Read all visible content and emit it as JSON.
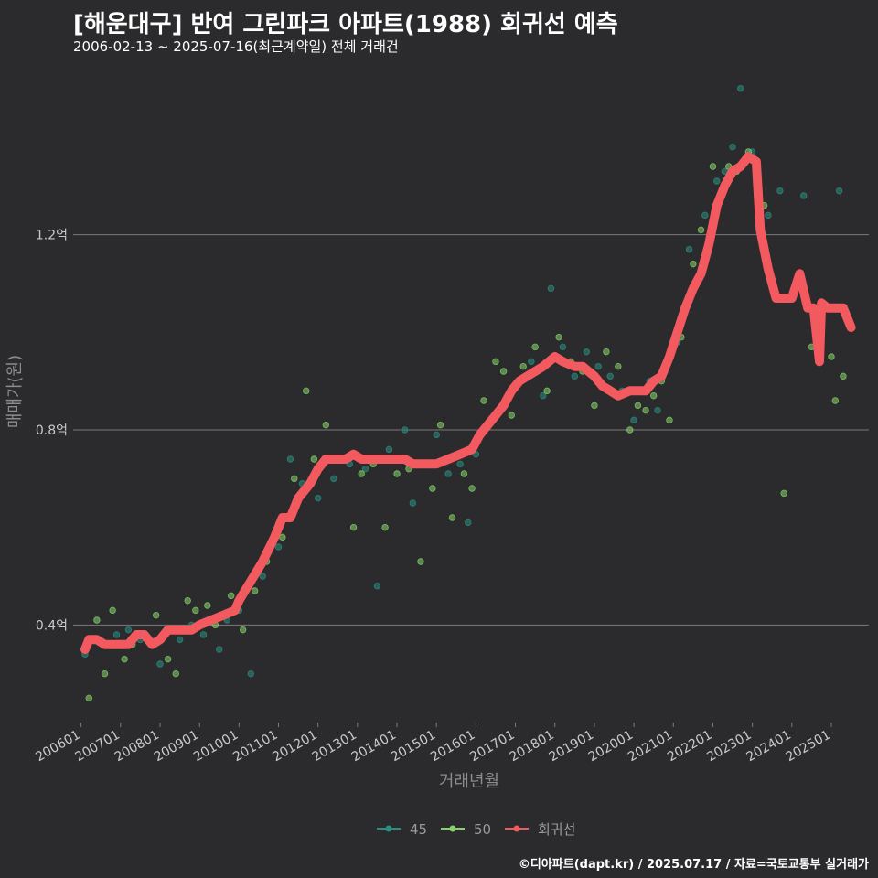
{
  "header": {
    "title": "[해운대구] 반여 그린파크 아파트(1988) 회귀선 예측",
    "subtitle": "2006-02-13 ~ 2025-07-16(최근계약일) 전체 거래건"
  },
  "credit": "©디아파트(dapt.kr) / 2025.07.17 / 자료=국토교통부 실거래가",
  "colors": {
    "background": "#2b2a2c",
    "grid": "#7a797b",
    "series_45": "#2a8f83",
    "series_50": "#86d36b",
    "regression": "#f25a5f",
    "axis_text": "#c9c9c9",
    "axis_title": "#8c8c8c"
  },
  "chart_data": {
    "type": "scatter",
    "title": "[해운대구] 반여 그린파크 아파트(1988) 회귀선 예측",
    "xlabel": "거래년월",
    "ylabel": "매매가(원)",
    "x_ticks": [
      "200601",
      "200701",
      "200801",
      "200901",
      "201001",
      "201101",
      "201201",
      "201301",
      "201401",
      "201501",
      "201601",
      "201701",
      "201801",
      "201901",
      "202001",
      "202101",
      "202201",
      "202301",
      "202401",
      "202501"
    ],
    "xlim": [
      2005.8,
      2025.95
    ],
    "ylim": [
      0.2,
      1.55
    ],
    "y_ticks": [
      0.4,
      0.8,
      1.2
    ],
    "y_tick_labels": [
      "0.4억",
      "0.8억",
      "1.2억"
    ],
    "legend": [
      {
        "key": "45",
        "label": "45"
      },
      {
        "key": "50",
        "label": "50"
      },
      {
        "key": "reg",
        "label": "회귀선"
      }
    ],
    "series": [
      {
        "name": "45",
        "points": [
          [
            2006.1,
            0.34
          ],
          [
            2006.3,
            0.37
          ],
          [
            2006.9,
            0.38
          ],
          [
            2007.2,
            0.39
          ],
          [
            2007.5,
            0.37
          ],
          [
            2008.0,
            0.32
          ],
          [
            2008.3,
            0.39
          ],
          [
            2008.5,
            0.37
          ],
          [
            2008.8,
            0.4
          ],
          [
            2009.1,
            0.38
          ],
          [
            2009.5,
            0.35
          ],
          [
            2009.7,
            0.41
          ],
          [
            2010.0,
            0.43
          ],
          [
            2010.3,
            0.3
          ],
          [
            2010.6,
            0.5
          ],
          [
            2011.0,
            0.56
          ],
          [
            2011.3,
            0.74
          ],
          [
            2011.6,
            0.69
          ],
          [
            2012.0,
            0.66
          ],
          [
            2012.4,
            0.7
          ],
          [
            2012.8,
            0.73
          ],
          [
            2013.2,
            0.72
          ],
          [
            2013.5,
            0.48
          ],
          [
            2013.8,
            0.76
          ],
          [
            2014.2,
            0.8
          ],
          [
            2014.4,
            0.65
          ],
          [
            2014.8,
            0.73
          ],
          [
            2015.0,
            0.79
          ],
          [
            2015.3,
            0.71
          ],
          [
            2015.6,
            0.73
          ],
          [
            2015.8,
            0.61
          ],
          [
            2016.0,
            0.75
          ],
          [
            2016.3,
            0.81
          ],
          [
            2016.6,
            0.84
          ],
          [
            2016.8,
            0.86
          ],
          [
            2017.1,
            0.9
          ],
          [
            2017.4,
            0.94
          ],
          [
            2017.7,
            0.87
          ],
          [
            2017.9,
            1.09
          ],
          [
            2018.2,
            0.97
          ],
          [
            2018.5,
            0.91
          ],
          [
            2018.8,
            0.96
          ],
          [
            2019.1,
            0.93
          ],
          [
            2019.4,
            0.91
          ],
          [
            2019.7,
            0.88
          ],
          [
            2020.0,
            0.82
          ],
          [
            2020.2,
            0.88
          ],
          [
            2020.4,
            0.9
          ],
          [
            2020.6,
            0.84
          ],
          [
            2020.9,
            0.95
          ],
          [
            2021.1,
            0.98
          ],
          [
            2021.4,
            1.17
          ],
          [
            2021.6,
            1.1
          ],
          [
            2021.8,
            1.24
          ],
          [
            2022.1,
            1.31
          ],
          [
            2022.3,
            1.33
          ],
          [
            2022.5,
            1.38
          ],
          [
            2022.7,
            1.5
          ],
          [
            2023.0,
            1.37
          ],
          [
            2023.4,
            1.24
          ],
          [
            2023.7,
            1.29
          ],
          [
            2024.3,
            1.28
          ],
          [
            2024.7,
            0.96
          ],
          [
            2025.2,
            1.29
          ]
        ]
      },
      {
        "name": "50",
        "points": [
          [
            2006.2,
            0.25
          ],
          [
            2006.4,
            0.41
          ],
          [
            2006.6,
            0.3
          ],
          [
            2006.8,
            0.43
          ],
          [
            2007.1,
            0.33
          ],
          [
            2007.3,
            0.36
          ],
          [
            2007.6,
            0.38
          ],
          [
            2007.9,
            0.42
          ],
          [
            2008.2,
            0.33
          ],
          [
            2008.4,
            0.3
          ],
          [
            2008.7,
            0.45
          ],
          [
            2008.9,
            0.43
          ],
          [
            2009.2,
            0.44
          ],
          [
            2009.4,
            0.4
          ],
          [
            2009.8,
            0.46
          ],
          [
            2010.1,
            0.39
          ],
          [
            2010.4,
            0.47
          ],
          [
            2010.7,
            0.53
          ],
          [
            2011.1,
            0.58
          ],
          [
            2011.4,
            0.7
          ],
          [
            2011.7,
            0.88
          ],
          [
            2011.9,
            0.74
          ],
          [
            2012.2,
            0.81
          ],
          [
            2012.5,
            0.74
          ],
          [
            2012.9,
            0.6
          ],
          [
            2013.1,
            0.71
          ],
          [
            2013.4,
            0.73
          ],
          [
            2013.7,
            0.6
          ],
          [
            2014.0,
            0.71
          ],
          [
            2014.3,
            0.72
          ],
          [
            2014.6,
            0.53
          ],
          [
            2014.9,
            0.68
          ],
          [
            2015.1,
            0.81
          ],
          [
            2015.4,
            0.62
          ],
          [
            2015.7,
            0.71
          ],
          [
            2015.9,
            0.68
          ],
          [
            2016.2,
            0.86
          ],
          [
            2016.5,
            0.94
          ],
          [
            2016.7,
            0.92
          ],
          [
            2016.9,
            0.83
          ],
          [
            2017.2,
            0.93
          ],
          [
            2017.5,
            0.97
          ],
          [
            2017.8,
            0.88
          ],
          [
            2018.1,
            0.99
          ],
          [
            2018.4,
            0.94
          ],
          [
            2018.7,
            0.92
          ],
          [
            2019.0,
            0.85
          ],
          [
            2019.3,
            0.96
          ],
          [
            2019.6,
            0.93
          ],
          [
            2019.9,
            0.8
          ],
          [
            2020.1,
            0.85
          ],
          [
            2020.3,
            0.84
          ],
          [
            2020.5,
            0.87
          ],
          [
            2020.7,
            0.9
          ],
          [
            2020.9,
            0.82
          ],
          [
            2021.2,
            0.99
          ],
          [
            2021.5,
            1.14
          ],
          [
            2021.7,
            1.21
          ],
          [
            2022.0,
            1.34
          ],
          [
            2022.4,
            1.34
          ],
          [
            2022.6,
            1.33
          ],
          [
            2022.9,
            1.37
          ],
          [
            2023.3,
            1.26
          ],
          [
            2023.8,
            0.67
          ],
          [
            2024.5,
            0.97
          ],
          [
            2025.1,
            0.86
          ],
          [
            2025.3,
            0.91
          ],
          [
            2025.0,
            0.95
          ]
        ]
      },
      {
        "name": "회귀선",
        "points": [
          [
            2006.1,
            0.35
          ],
          [
            2006.2,
            0.37
          ],
          [
            2006.4,
            0.37
          ],
          [
            2006.6,
            0.36
          ],
          [
            2006.9,
            0.36
          ],
          [
            2007.0,
            0.36
          ],
          [
            2007.2,
            0.36
          ],
          [
            2007.4,
            0.38
          ],
          [
            2007.6,
            0.38
          ],
          [
            2007.8,
            0.36
          ],
          [
            2008.0,
            0.37
          ],
          [
            2008.2,
            0.39
          ],
          [
            2008.5,
            0.39
          ],
          [
            2008.8,
            0.39
          ],
          [
            2009.0,
            0.4
          ],
          [
            2009.3,
            0.41
          ],
          [
            2009.6,
            0.42
          ],
          [
            2009.9,
            0.43
          ],
          [
            2010.0,
            0.45
          ],
          [
            2010.3,
            0.49
          ],
          [
            2010.6,
            0.53
          ],
          [
            2010.9,
            0.58
          ],
          [
            2011.1,
            0.62
          ],
          [
            2011.3,
            0.62
          ],
          [
            2011.5,
            0.66
          ],
          [
            2011.8,
            0.69
          ],
          [
            2012.0,
            0.72
          ],
          [
            2012.2,
            0.74
          ],
          [
            2012.4,
            0.74
          ],
          [
            2012.7,
            0.74
          ],
          [
            2012.9,
            0.75
          ],
          [
            2013.1,
            0.74
          ],
          [
            2013.4,
            0.74
          ],
          [
            2013.7,
            0.74
          ],
          [
            2014.0,
            0.74
          ],
          [
            2014.2,
            0.74
          ],
          [
            2014.4,
            0.73
          ],
          [
            2014.7,
            0.73
          ],
          [
            2015.0,
            0.73
          ],
          [
            2015.3,
            0.74
          ],
          [
            2015.6,
            0.75
          ],
          [
            2015.9,
            0.76
          ],
          [
            2016.1,
            0.79
          ],
          [
            2016.4,
            0.82
          ],
          [
            2016.7,
            0.85
          ],
          [
            2016.9,
            0.88
          ],
          [
            2017.1,
            0.9
          ],
          [
            2017.3,
            0.91
          ],
          [
            2017.5,
            0.92
          ],
          [
            2017.7,
            0.93
          ],
          [
            2018.0,
            0.95
          ],
          [
            2018.2,
            0.94
          ],
          [
            2018.5,
            0.93
          ],
          [
            2018.7,
            0.93
          ],
          [
            2019.0,
            0.91
          ],
          [
            2019.2,
            0.89
          ],
          [
            2019.4,
            0.88
          ],
          [
            2019.6,
            0.87
          ],
          [
            2019.9,
            0.88
          ],
          [
            2020.1,
            0.88
          ],
          [
            2020.3,
            0.88
          ],
          [
            2020.5,
            0.9
          ],
          [
            2020.7,
            0.91
          ],
          [
            2020.9,
            0.95
          ],
          [
            2021.1,
            1.0
          ],
          [
            2021.3,
            1.05
          ],
          [
            2021.5,
            1.09
          ],
          [
            2021.7,
            1.12
          ],
          [
            2021.9,
            1.18
          ],
          [
            2022.1,
            1.26
          ],
          [
            2022.3,
            1.3
          ],
          [
            2022.5,
            1.33
          ],
          [
            2022.7,
            1.34
          ],
          [
            2022.9,
            1.36
          ],
          [
            2023.1,
            1.35
          ],
          [
            2023.2,
            1.21
          ],
          [
            2023.4,
            1.13
          ],
          [
            2023.6,
            1.07
          ],
          [
            2023.8,
            1.07
          ],
          [
            2024.0,
            1.07
          ],
          [
            2024.2,
            1.12
          ],
          [
            2024.4,
            1.05
          ],
          [
            2024.55,
            1.05
          ],
          [
            2024.7,
            0.94
          ],
          [
            2024.75,
            1.06
          ],
          [
            2024.9,
            1.05
          ],
          [
            2025.1,
            1.05
          ],
          [
            2025.3,
            1.05
          ],
          [
            2025.5,
            1.01
          ]
        ]
      }
    ]
  }
}
